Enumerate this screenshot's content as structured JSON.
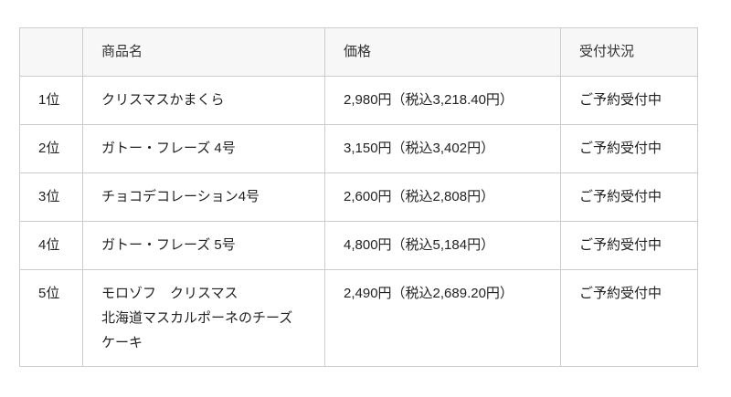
{
  "table": {
    "columns": {
      "rank": "",
      "name": "商品名",
      "price": "価格",
      "status": "受付状況"
    },
    "rows": [
      {
        "rank": "1位",
        "name": "クリスマスかまくら",
        "price": "2,980円（税込3,218.40円）",
        "status": "ご予約受付中"
      },
      {
        "rank": "2位",
        "name": "ガトー・フレーズ 4号",
        "price": "3,150円（税込3,402円）",
        "status": "ご予約受付中"
      },
      {
        "rank": "3位",
        "name": "チョコデコレーション4号",
        "price": "2,600円（税込2,808円）",
        "status": "ご予約受付中"
      },
      {
        "rank": "4位",
        "name": "ガトー・フレーズ 5号",
        "price": "4,800円（税込5,184円）",
        "status": "ご予約受付中"
      },
      {
        "rank": "5位",
        "name": "モロゾフ　クリスマス\n北海道マスカルポーネのチーズ\nケーキ",
        "price": "2,490円（税込2,689.20円）",
        "status": "ご予約受付中"
      }
    ],
    "colors": {
      "border": "#cccccc",
      "header_bg": "#f7f7f7",
      "text": "#222222"
    }
  }
}
